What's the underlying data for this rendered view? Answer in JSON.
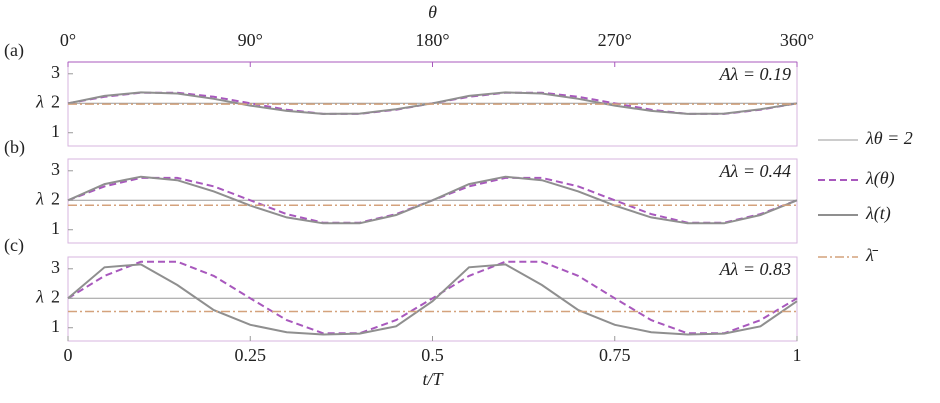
{
  "chart_data": [
    {
      "type": "line",
      "panel_label": "(a)",
      "ylabel": "λ",
      "annotation": "Aλ = 0.19",
      "x2label": "θ",
      "x2lim": [
        0,
        360
      ],
      "x2ticks": [
        {
          "value": 0,
          "label": "0°"
        },
        {
          "value": 90,
          "label": "90°"
        },
        {
          "value": 180,
          "label": "180°"
        },
        {
          "value": 270,
          "label": "270°"
        },
        {
          "value": 360,
          "label": "360°"
        }
      ],
      "xlim": [
        0,
        1
      ],
      "ylim": [
        0.55,
        3.4
      ],
      "yticks": [
        1,
        2,
        3
      ],
      "x": [
        0,
        0.05,
        0.1,
        0.15,
        0.2,
        0.25,
        0.3,
        0.35,
        0.4,
        0.45,
        0.5,
        0.55,
        0.6,
        0.65,
        0.7,
        0.75,
        0.8,
        0.85,
        0.9,
        0.95,
        1
      ],
      "series": [
        {
          "name": "λθ = 2",
          "color": "#9a9a9a",
          "style": "solid",
          "width": 1,
          "x": [
            0,
            1
          ],
          "values": [
            2,
            2
          ]
        },
        {
          "name": "λ(θ)",
          "color": "#a858bd",
          "style": "dashed",
          "width": 2,
          "values": [
            2,
            2.22,
            2.36,
            2.36,
            2.22,
            2,
            1.78,
            1.64,
            1.64,
            1.78,
            2,
            2.22,
            2.36,
            2.36,
            2.22,
            2,
            1.78,
            1.64,
            1.64,
            1.78,
            2
          ]
        },
        {
          "name": "λ(t)",
          "color": "#8f8f8f",
          "style": "solid",
          "width": 2,
          "values": [
            2,
            2.25,
            2.37,
            2.33,
            2.15,
            1.92,
            1.74,
            1.64,
            1.65,
            1.8,
            2,
            2.25,
            2.37,
            2.33,
            2.15,
            1.92,
            1.74,
            1.64,
            1.65,
            1.8,
            2
          ]
        },
        {
          "name": "λ̄",
          "color": "#d4a27c",
          "style": "dashdot",
          "width": 1.5,
          "x": [
            0,
            1
          ],
          "values": [
            1.97,
            1.97
          ]
        }
      ]
    },
    {
      "type": "line",
      "panel_label": "(b)",
      "ylabel": "λ",
      "annotation": "Aλ = 0.44",
      "xlim": [
        0,
        1
      ],
      "ylim": [
        0.55,
        3.4
      ],
      "yticks": [
        1,
        2,
        3
      ],
      "x": [
        0,
        0.05,
        0.1,
        0.15,
        0.2,
        0.25,
        0.3,
        0.35,
        0.4,
        0.45,
        0.5,
        0.55,
        0.6,
        0.65,
        0.7,
        0.75,
        0.8,
        0.85,
        0.9,
        0.95,
        1
      ],
      "series": [
        {
          "color": "#9a9a9a",
          "style": "solid",
          "width": 1,
          "x": [
            0,
            1
          ],
          "values": [
            2,
            2
          ]
        },
        {
          "color": "#a858bd",
          "style": "dashed",
          "width": 2,
          "values": [
            2,
            2.47,
            2.76,
            2.76,
            2.47,
            2,
            1.53,
            1.24,
            1.24,
            1.53,
            2,
            2.47,
            2.76,
            2.76,
            2.47,
            2,
            1.53,
            1.24,
            1.24,
            1.53,
            2
          ]
        },
        {
          "color": "#8f8f8f",
          "style": "solid",
          "width": 2,
          "values": [
            2,
            2.55,
            2.8,
            2.68,
            2.3,
            1.82,
            1.42,
            1.22,
            1.22,
            1.5,
            2,
            2.55,
            2.8,
            2.68,
            2.3,
            1.82,
            1.42,
            1.22,
            1.22,
            1.5,
            2
          ]
        },
        {
          "color": "#d4a27c",
          "style": "dashdot",
          "width": 1.5,
          "x": [
            0,
            1
          ],
          "values": [
            1.83,
            1.83
          ]
        }
      ]
    },
    {
      "type": "line",
      "panel_label": "(c)",
      "ylabel": "λ",
      "annotation": "Aλ = 0.83",
      "xlabel": "t/T",
      "xlim": [
        0,
        1
      ],
      "xticks": [
        0,
        0.25,
        0.5,
        0.75,
        1
      ],
      "ylim": [
        0.55,
        3.4
      ],
      "yticks": [
        1,
        2,
        3
      ],
      "x": [
        0,
        0.05,
        0.1,
        0.15,
        0.2,
        0.25,
        0.3,
        0.35,
        0.4,
        0.45,
        0.5,
        0.55,
        0.6,
        0.65,
        0.7,
        0.75,
        0.8,
        0.85,
        0.9,
        0.95,
        1
      ],
      "series": [
        {
          "color": "#9a9a9a",
          "style": "solid",
          "width": 1,
          "x": [
            0,
            1
          ],
          "values": [
            2,
            2
          ]
        },
        {
          "color": "#a858bd",
          "style": "dashed",
          "width": 2,
          "values": [
            2,
            2.76,
            3.24,
            3.24,
            2.76,
            2,
            1.26,
            0.81,
            0.81,
            1.26,
            2,
            2.76,
            3.24,
            3.24,
            2.76,
            2,
            1.26,
            0.81,
            0.81,
            1.26,
            2
          ]
        },
        {
          "color": "#8f8f8f",
          "style": "solid",
          "width": 2,
          "values": [
            2,
            3.05,
            3.15,
            2.45,
            1.6,
            1.1,
            0.85,
            0.77,
            0.8,
            1.05,
            1.9,
            3.05,
            3.15,
            2.45,
            1.6,
            1.1,
            0.85,
            0.77,
            0.8,
            1.05,
            1.9
          ]
        },
        {
          "color": "#d4a27c",
          "style": "dashdot",
          "width": 1.5,
          "x": [
            0,
            1
          ],
          "values": [
            1.55,
            1.55
          ]
        }
      ]
    }
  ]
}
